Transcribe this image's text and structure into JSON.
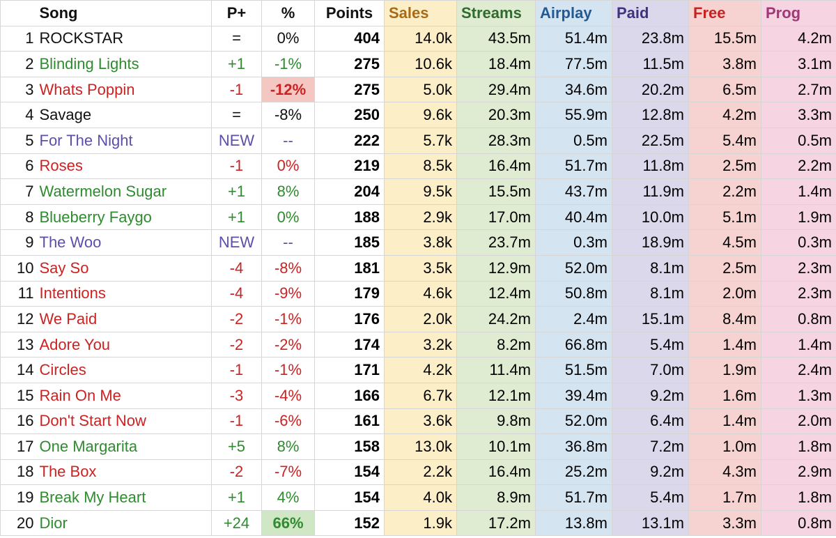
{
  "colors": {
    "green": "#2e8b2e",
    "red": "#cc2222",
    "purple": "#5b4fa8",
    "black": "#111111",
    "sales_head": "#a86a18",
    "streams_head": "#2f6b2f",
    "airplay_head": "#245a94",
    "paid_head": "#3e3380",
    "free_head": "#c42323",
    "prog_head": "#a03878",
    "neg_highlight": "#f4c7c3",
    "pos_highlight": "#cfe7c4"
  },
  "headers": {
    "song": "Song",
    "move": "P+",
    "pct": "%",
    "points": "Points",
    "sales": "Sales",
    "streams": "Streams",
    "airplay": "Airplay",
    "paid": "Paid",
    "free": "Free",
    "prog": "Prog"
  },
  "rows": [
    {
      "rank": "1",
      "song": "ROCKSTAR",
      "status": "same",
      "move": "=",
      "pct": "0%",
      "points": "404",
      "sales": "14.0k",
      "streams": "43.5m",
      "airplay": "51.4m",
      "paid": "23.8m",
      "free": "15.5m",
      "prog": "4.2m"
    },
    {
      "rank": "2",
      "song": "Blinding Lights",
      "status": "up",
      "move": "+1",
      "pct": "-1%",
      "points": "275",
      "sales": "10.6k",
      "streams": "18.4m",
      "airplay": "77.5m",
      "paid": "11.5m",
      "free": "3.8m",
      "prog": "3.1m"
    },
    {
      "rank": "3",
      "song": "Whats Poppin",
      "status": "down",
      "move": "-1",
      "pct": "-12%",
      "pct_highlight": "neg",
      "points": "275",
      "sales": "5.0k",
      "streams": "29.4m",
      "airplay": "34.6m",
      "paid": "20.2m",
      "free": "6.5m",
      "prog": "2.7m"
    },
    {
      "rank": "4",
      "song": "Savage",
      "status": "same",
      "move": "=",
      "pct": "-8%",
      "points": "250",
      "sales": "9.6k",
      "streams": "20.3m",
      "airplay": "55.9m",
      "paid": "12.8m",
      "free": "4.2m",
      "prog": "3.3m"
    },
    {
      "rank": "5",
      "song": "For The Night",
      "status": "new",
      "move": "NEW",
      "pct": "--",
      "points": "222",
      "sales": "5.7k",
      "streams": "28.3m",
      "airplay": "0.5m",
      "paid": "22.5m",
      "free": "5.4m",
      "prog": "0.5m"
    },
    {
      "rank": "6",
      "song": "Roses",
      "status": "down",
      "move": "-1",
      "pct": "0%",
      "points": "219",
      "sales": "8.5k",
      "streams": "16.4m",
      "airplay": "51.7m",
      "paid": "11.8m",
      "free": "2.5m",
      "prog": "2.2m"
    },
    {
      "rank": "7",
      "song": "Watermelon Sugar",
      "status": "up",
      "move": "+1",
      "pct": "8%",
      "points": "204",
      "sales": "9.5k",
      "streams": "15.5m",
      "airplay": "43.7m",
      "paid": "11.9m",
      "free": "2.2m",
      "prog": "1.4m"
    },
    {
      "rank": "8",
      "song": "Blueberry Faygo",
      "status": "up",
      "move": "+1",
      "pct": "0%",
      "points": "188",
      "sales": "2.9k",
      "streams": "17.0m",
      "airplay": "40.4m",
      "paid": "10.0m",
      "free": "5.1m",
      "prog": "1.9m"
    },
    {
      "rank": "9",
      "song": "The Woo",
      "status": "new",
      "move": "NEW",
      "pct": "--",
      "points": "185",
      "sales": "3.8k",
      "streams": "23.7m",
      "airplay": "0.3m",
      "paid": "18.9m",
      "free": "4.5m",
      "prog": "0.3m"
    },
    {
      "rank": "10",
      "song": "Say So",
      "status": "down",
      "move": "-4",
      "pct": "-8%",
      "points": "181",
      "sales": "3.5k",
      "streams": "12.9m",
      "airplay": "52.0m",
      "paid": "8.1m",
      "free": "2.5m",
      "prog": "2.3m"
    },
    {
      "rank": "11",
      "song": "Intentions",
      "status": "down",
      "move": "-4",
      "pct": "-9%",
      "points": "179",
      "sales": "4.6k",
      "streams": "12.4m",
      "airplay": "50.8m",
      "paid": "8.1m",
      "free": "2.0m",
      "prog": "2.3m"
    },
    {
      "rank": "12",
      "song": "We Paid",
      "status": "down",
      "move": "-2",
      "pct": "-1%",
      "points": "176",
      "sales": "2.0k",
      "streams": "24.2m",
      "airplay": "2.4m",
      "paid": "15.1m",
      "free": "8.4m",
      "prog": "0.8m"
    },
    {
      "rank": "13",
      "song": "Adore You",
      "status": "down",
      "move": "-2",
      "pct": "-2%",
      "points": "174",
      "sales": "3.2k",
      "streams": "8.2m",
      "airplay": "66.8m",
      "paid": "5.4m",
      "free": "1.4m",
      "prog": "1.4m"
    },
    {
      "rank": "14",
      "song": "Circles",
      "status": "down",
      "move": "-1",
      "pct": "-1%",
      "points": "171",
      "sales": "4.2k",
      "streams": "11.4m",
      "airplay": "51.5m",
      "paid": "7.0m",
      "free": "1.9m",
      "prog": "2.4m"
    },
    {
      "rank": "15",
      "song": "Rain On Me",
      "status": "down",
      "move": "-3",
      "pct": "-4%",
      "points": "166",
      "sales": "6.7k",
      "streams": "12.1m",
      "airplay": "39.4m",
      "paid": "9.2m",
      "free": "1.6m",
      "prog": "1.3m"
    },
    {
      "rank": "16",
      "song": "Don't Start Now",
      "status": "down",
      "move": "-1",
      "pct": "-6%",
      "points": "161",
      "sales": "3.6k",
      "streams": "9.8m",
      "airplay": "52.0m",
      "paid": "6.4m",
      "free": "1.4m",
      "prog": "2.0m"
    },
    {
      "rank": "17",
      "song": "One Margarita",
      "status": "up",
      "move": "+5",
      "pct": "8%",
      "points": "158",
      "sales": "13.0k",
      "streams": "10.1m",
      "airplay": "36.8m",
      "paid": "7.2m",
      "free": "1.0m",
      "prog": "1.8m"
    },
    {
      "rank": "18",
      "song": "The Box",
      "status": "down",
      "move": "-2",
      "pct": "-7%",
      "points": "154",
      "sales": "2.2k",
      "streams": "16.4m",
      "airplay": "25.2m",
      "paid": "9.2m",
      "free": "4.3m",
      "prog": "2.9m"
    },
    {
      "rank": "19",
      "song": "Break My Heart",
      "status": "up",
      "move": "+1",
      "pct": "4%",
      "points": "154",
      "sales": "4.0k",
      "streams": "8.9m",
      "airplay": "51.7m",
      "paid": "5.4m",
      "free": "1.7m",
      "prog": "1.8m"
    },
    {
      "rank": "20",
      "song": "Dior",
      "status": "up",
      "move": "+24",
      "pct": "66%",
      "pct_highlight": "pos",
      "points": "152",
      "sales": "1.9k",
      "streams": "17.2m",
      "airplay": "13.8m",
      "paid": "13.1m",
      "free": "3.3m",
      "prog": "0.8m"
    }
  ]
}
